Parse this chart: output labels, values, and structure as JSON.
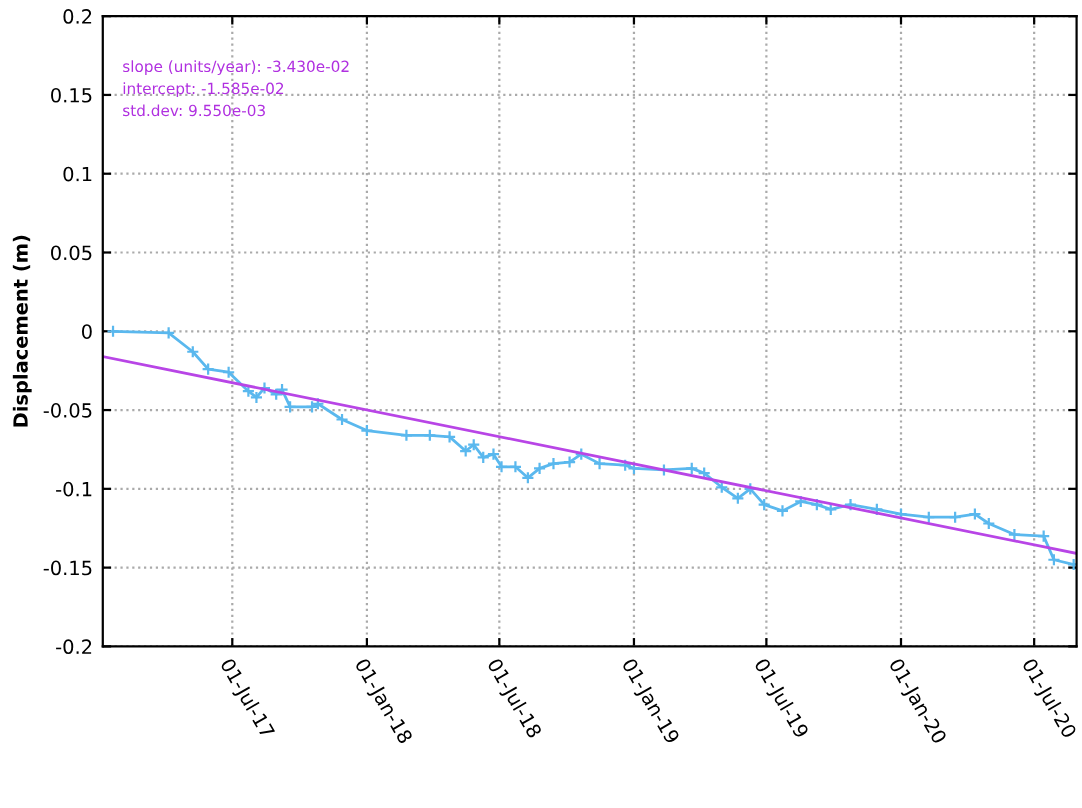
{
  "chart_data": {
    "type": "line",
    "ylabel": "Displacement (m)",
    "annotations": [
      "slope (units/year): -3.430e-02",
      "intercept: -1.585e-02",
      "std.dev: 9.550e-03"
    ],
    "xlim": [
      "2017-01-05",
      "2020-08-28"
    ],
    "ylim": [
      -0.2,
      0.2
    ],
    "xticks": [
      {
        "value": "2017-07-01",
        "label": "01-Jul-17"
      },
      {
        "value": "2018-01-01",
        "label": "01-Jan-18"
      },
      {
        "value": "2018-07-01",
        "label": "01-Jul-18"
      },
      {
        "value": "2019-01-01",
        "label": "01-Jan-19"
      },
      {
        "value": "2019-07-01",
        "label": "01-Jul-19"
      },
      {
        "value": "2020-01-01",
        "label": "01-Jan-20"
      },
      {
        "value": "2020-07-01",
        "label": "01-Jul-20"
      }
    ],
    "yticks": [
      -0.2,
      -0.15,
      -0.1,
      -0.05,
      0,
      0.05,
      0.1,
      0.15,
      0.2
    ],
    "grid": true,
    "series": [
      {
        "color": "#5ab8ee",
        "marker": "cross",
        "x": [
          "2017-01-19",
          "2017-04-05",
          "2017-05-08",
          "2017-05-29",
          "2017-06-26",
          "2017-07-23",
          "2017-08-03",
          "2017-08-14",
          "2017-08-30",
          "2017-09-07",
          "2017-09-18",
          "2017-10-18",
          "2017-10-26",
          "2017-11-28",
          "2018-01-01",
          "2018-02-24",
          "2018-03-28",
          "2018-04-24",
          "2018-05-16",
          "2018-05-27",
          "2018-06-09",
          "2018-06-23",
          "2018-07-04",
          "2018-07-23",
          "2018-08-09",
          "2018-08-25",
          "2018-09-13",
          "2018-10-05",
          "2018-10-21",
          "2018-11-15",
          "2018-12-20",
          "2019-01-01",
          "2019-02-11",
          "2019-03-21",
          "2019-04-07",
          "2019-05-01",
          "2019-05-23",
          "2019-06-09",
          "2019-06-28",
          "2019-07-23",
          "2019-08-17",
          "2019-09-08",
          "2019-09-27",
          "2019-10-24",
          "2019-11-29",
          "2020-01-01",
          "2020-02-08",
          "2020-03-15",
          "2020-04-11",
          "2020-04-30",
          "2020-06-04",
          "2020-07-14",
          "2020-07-28",
          "2020-08-24"
        ],
        "values": [
          0,
          -0.001,
          -0.013,
          -0.024,
          -0.026,
          -0.038,
          -0.042,
          -0.036,
          -0.04,
          -0.037,
          -0.048,
          -0.048,
          -0.046,
          -0.056,
          -0.063,
          -0.066,
          -0.066,
          -0.067,
          -0.076,
          -0.072,
          -0.08,
          -0.078,
          -0.086,
          -0.086,
          -0.093,
          -0.087,
          -0.084,
          -0.083,
          -0.078,
          -0.084,
          -0.085,
          -0.087,
          -0.088,
          -0.087,
          -0.09,
          -0.099,
          -0.106,
          -0.1,
          -0.11,
          -0.114,
          -0.108,
          -0.11,
          -0.113,
          -0.11,
          -0.113,
          -0.116,
          -0.118,
          -0.118,
          -0.116,
          -0.122,
          -0.129,
          -0.13,
          -0.145,
          -0.148
        ]
      },
      {
        "color": "#b845e6",
        "marker": "none",
        "x": [
          "2017-01-05",
          "2020-08-28"
        ],
        "values": [
          -0.016,
          -0.141
        ]
      }
    ]
  }
}
